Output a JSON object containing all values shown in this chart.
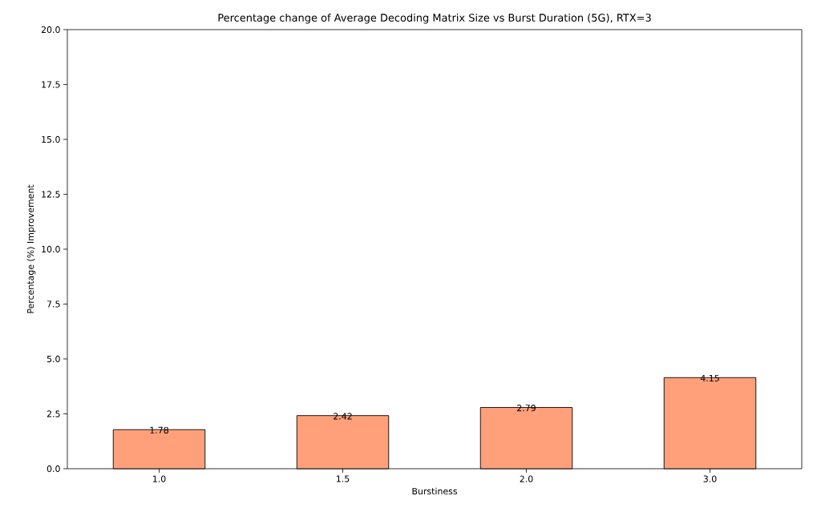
{
  "chart_data": {
    "type": "bar",
    "title": "Percentage change of Average Decoding Matrix Size vs Burst Duration (5G), RTX=3",
    "xlabel": "Burstiness",
    "ylabel": "Percentage (%) Improvement",
    "categories": [
      "1.0",
      "1.5",
      "2.0",
      "3.0"
    ],
    "values": [
      1.78,
      2.42,
      2.79,
      4.15
    ],
    "color": "#ffa07a",
    "data_labels": true,
    "ylim": [
      0,
      20
    ],
    "yticks": [
      {
        "value": 0,
        "label": "0.0"
      },
      {
        "value": 2.5,
        "label": "2.5"
      },
      {
        "value": 5,
        "label": "5.0"
      },
      {
        "value": 7.5,
        "label": "7.5"
      },
      {
        "value": 10,
        "label": "10.0"
      },
      {
        "value": 12.5,
        "label": "12.5"
      },
      {
        "value": 15,
        "label": "15.0"
      },
      {
        "value": 17.5,
        "label": "17.5"
      },
      {
        "value": 20,
        "label": "20.0"
      }
    ]
  }
}
